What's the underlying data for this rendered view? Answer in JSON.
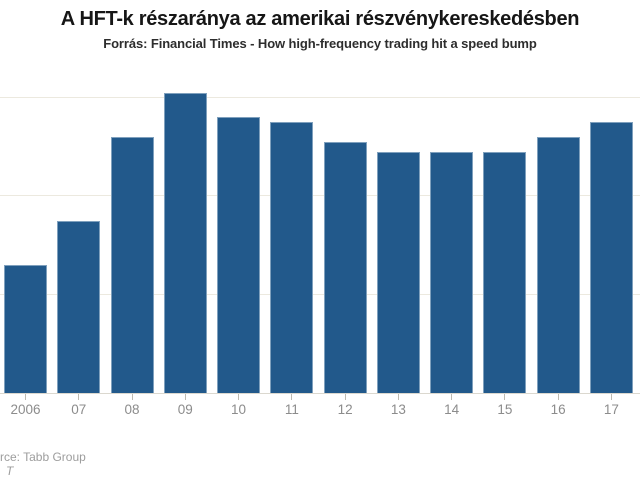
{
  "chart_data": {
    "type": "bar",
    "title": "A HFT-k részaránya az amerikai részvénykereskedésben",
    "subtitle": "Forrás: Financial Times - How high-frequency trading hit a speed bump",
    "categories": [
      "2006",
      "07",
      "08",
      "09",
      "10",
      "11",
      "12",
      "13",
      "14",
      "15",
      "16",
      "17"
    ],
    "values": [
      26,
      35,
      52,
      61,
      56,
      55,
      51,
      49,
      49,
      49,
      52,
      55
    ],
    "xlabel": "",
    "ylabel": "",
    "ylim": [
      0,
      65
    ],
    "gridline_values": [
      20,
      40,
      60
    ],
    "grid": true,
    "legend": "none",
    "colors": {
      "bar_fill": "#22598b",
      "bar_border": "#7fa0bd",
      "gridline": "#ece9df",
      "baseline": "#dbd8cf",
      "tick": "#bdbab1",
      "axis_label": "#8c8c8c",
      "title_text": "#161616",
      "subtitle_text": "#2d2d2d",
      "source_text": "#9d9d9d"
    }
  },
  "footer": {
    "source_text": "rce: Tabb Group",
    "credit_text": "T"
  }
}
